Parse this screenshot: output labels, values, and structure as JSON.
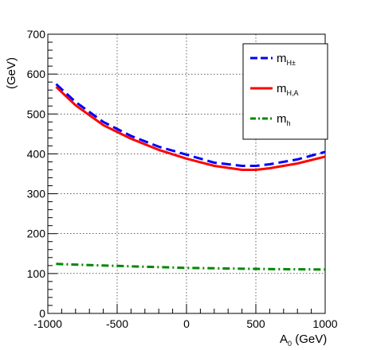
{
  "chart_data": {
    "type": "line",
    "xlabel": "A",
    "xlabel_sub": "0",
    "xlabel_unit": " (GeV)",
    "ylabel": "(GeV)",
    "xlim": [
      -1000,
      1000
    ],
    "ylim": [
      0,
      700
    ],
    "x_ticks": [
      -1000,
      -500,
      0,
      500,
      1000
    ],
    "y_ticks": [
      0,
      100,
      200,
      300,
      400,
      500,
      600,
      700
    ],
    "grid": true,
    "legend_position": "top-right",
    "series": [
      {
        "name": "m",
        "name_sub": "H±",
        "color": "#0000ff",
        "style": "dashed",
        "x": [
          -940,
          -800,
          -600,
          -400,
          -200,
          0,
          200,
          400,
          500,
          600,
          800,
          1000
        ],
        "y": [
          575,
          530,
          480,
          445,
          418,
          398,
          378,
          370,
          370,
          374,
          386,
          405
        ]
      },
      {
        "name": "m",
        "name_sub": "H,A",
        "color": "#ff0000",
        "style": "solid",
        "x": [
          -940,
          -800,
          -600,
          -400,
          -200,
          0,
          200,
          400,
          500,
          600,
          800,
          1000
        ],
        "y": [
          568,
          522,
          472,
          438,
          410,
          388,
          370,
          360,
          360,
          364,
          376,
          393
        ]
      },
      {
        "name": "m",
        "name_sub": "h",
        "color": "#008800",
        "style": "dashdot",
        "x": [
          -940,
          -600,
          -200,
          0,
          200,
          600,
          1000
        ],
        "y": [
          124,
          120,
          116,
          114,
          113,
          111,
          110
        ]
      }
    ]
  }
}
